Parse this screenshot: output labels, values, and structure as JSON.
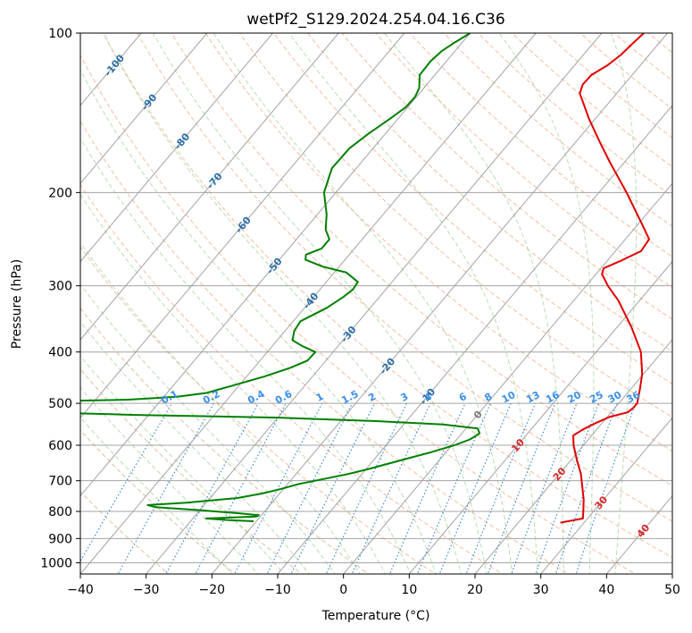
{
  "chart_data": {
    "type": "line",
    "title": "wetPf2_S129.2024.254.04.16.C36",
    "xlabel": "Temperature (°C)",
    "ylabel": "Pressure (hPa)",
    "xlim": [
      -40,
      50
    ],
    "ylim": [
      1050,
      100
    ],
    "y_scale": "log",
    "grid": true,
    "x_ticks": [
      -40,
      -30,
      -20,
      -10,
      0,
      10,
      20,
      30,
      40,
      50
    ],
    "y_ticks": [
      100,
      200,
      300,
      400,
      500,
      600,
      700,
      800,
      900,
      1000
    ],
    "colors": {
      "temperature": "#e00000",
      "dewpoint": "#008000",
      "isotherm": "#9a9a9a",
      "dry_adiabat": "#f4a582",
      "moist_adiabat": "#a6d5a0",
      "mixing_ratio": "#2c7fd6",
      "isotherm_label_cold": "#2b6ea6",
      "isotherm_label_warm": "#d62728",
      "isotherm_label_zero": "#7a7a7a",
      "mixing_label": "#3a8fe8"
    },
    "series": [
      {
        "role": "temperature",
        "points": [
          {
            "p": 840,
            "t": 26.4
          },
          {
            "p": 825,
            "t": 29.3
          },
          {
            "p": 810,
            "t": 28.8
          },
          {
            "p": 790,
            "t": 28.1
          },
          {
            "p": 760,
            "t": 27.0
          },
          {
            "p": 720,
            "t": 25.2
          },
          {
            "p": 680,
            "t": 23.3
          },
          {
            "p": 640,
            "t": 20.9
          },
          {
            "p": 600,
            "t": 18.5
          },
          {
            "p": 575,
            "t": 17.2
          },
          {
            "p": 560,
            "t": 17.9
          },
          {
            "p": 545,
            "t": 19.0
          },
          {
            "p": 530,
            "t": 20.4
          },
          {
            "p": 520,
            "t": 22.5
          },
          {
            "p": 510,
            "t": 22.8
          },
          {
            "p": 500,
            "t": 22.8
          },
          {
            "p": 470,
            "t": 21.4
          },
          {
            "p": 440,
            "t": 19.8
          },
          {
            "p": 400,
            "t": 16.8
          },
          {
            "p": 360,
            "t": 12.3
          },
          {
            "p": 320,
            "t": 6.8
          },
          {
            "p": 300,
            "t": 3.3
          },
          {
            "p": 285,
            "t": 0.9
          },
          {
            "p": 278,
            "t": 0.4
          },
          {
            "p": 270,
            "t": 1.9
          },
          {
            "p": 258,
            "t": 3.9
          },
          {
            "p": 245,
            "t": 3.6
          },
          {
            "p": 230,
            "t": 0.7
          },
          {
            "p": 200,
            "t": -5.8
          },
          {
            "p": 175,
            "t": -12.3
          },
          {
            "p": 160,
            "t": -16.5
          },
          {
            "p": 145,
            "t": -21.0
          },
          {
            "p": 135,
            "t": -24.0
          },
          {
            "p": 130,
            "t": -25.6
          },
          {
            "p": 125,
            "t": -26.3
          },
          {
            "p": 120,
            "t": -26.2
          },
          {
            "p": 115,
            "t": -25.0
          },
          {
            "p": 110,
            "t": -24.3
          },
          {
            "p": 105,
            "t": -24.0
          },
          {
            "p": 100,
            "t": -23.6
          }
        ]
      },
      {
        "role": "dewpoint",
        "points": [
          {
            "p": 835,
            "t": -20.4
          },
          {
            "p": 830,
            "t": -24.9
          },
          {
            "p": 825,
            "t": -28.0
          },
          {
            "p": 818,
            "t": -20.6
          },
          {
            "p": 813,
            "t": -20.4
          },
          {
            "p": 806,
            "t": -23.9
          },
          {
            "p": 795,
            "t": -30.5
          },
          {
            "p": 785,
            "t": -37.2
          },
          {
            "p": 778,
            "t": -38.6
          },
          {
            "p": 770,
            "t": -33.0
          },
          {
            "p": 755,
            "t": -25.9
          },
          {
            "p": 740,
            "t": -22.7
          },
          {
            "p": 725,
            "t": -20.3
          },
          {
            "p": 710,
            "t": -18.3
          },
          {
            "p": 695,
            "t": -15.2
          },
          {
            "p": 680,
            "t": -12.1
          },
          {
            "p": 665,
            "t": -9.6
          },
          {
            "p": 650,
            "t": -7.3
          },
          {
            "p": 635,
            "t": -5.0
          },
          {
            "p": 620,
            "t": -2.5
          },
          {
            "p": 600,
            "t": 0.4
          },
          {
            "p": 585,
            "t": 2.0
          },
          {
            "p": 570,
            "t": 2.7
          },
          {
            "p": 558,
            "t": 1.8
          },
          {
            "p": 548,
            "t": -4.0
          },
          {
            "p": 540,
            "t": -15.0
          },
          {
            "p": 532,
            "t": -30.0
          },
          {
            "p": 526,
            "t": -52.0
          },
          {
            "p": 520,
            "t": -66.0
          },
          {
            "p": 496,
            "t": -68.0
          },
          {
            "p": 492,
            "t": -55.0
          },
          {
            "p": 486,
            "t": -48.0
          },
          {
            "p": 478,
            "t": -44.0
          },
          {
            "p": 462,
            "t": -40.8
          },
          {
            "p": 445,
            "t": -37.3
          },
          {
            "p": 428,
            "t": -34.4
          },
          {
            "p": 415,
            "t": -32.8
          },
          {
            "p": 400,
            "t": -32.7
          },
          {
            "p": 390,
            "t": -35.4
          },
          {
            "p": 380,
            "t": -37.7
          },
          {
            "p": 365,
            "t": -38.6
          },
          {
            "p": 350,
            "t": -38.9
          },
          {
            "p": 330,
            "t": -36.6
          },
          {
            "p": 315,
            "t": -35.5
          },
          {
            "p": 305,
            "t": -35.0
          },
          {
            "p": 295,
            "t": -35.2
          },
          {
            "p": 283,
            "t": -38.2
          },
          {
            "p": 276,
            "t": -42.5
          },
          {
            "p": 268,
            "t": -46.0
          },
          {
            "p": 262,
            "t": -46.6
          },
          {
            "p": 255,
            "t": -45.0
          },
          {
            "p": 245,
            "t": -45.0
          },
          {
            "p": 235,
            "t": -46.8
          },
          {
            "p": 220,
            "t": -48.6
          },
          {
            "p": 200,
            "t": -51.8
          },
          {
            "p": 180,
            "t": -53.7
          },
          {
            "p": 165,
            "t": -53.6
          },
          {
            "p": 155,
            "t": -52.6
          },
          {
            "p": 145,
            "t": -51.2
          },
          {
            "p": 138,
            "t": -50.3
          },
          {
            "p": 132,
            "t": -50.2
          },
          {
            "p": 127,
            "t": -50.7
          },
          {
            "p": 120,
            "t": -52.3
          },
          {
            "p": 113,
            "t": -52.4
          },
          {
            "p": 108,
            "t": -52.0
          },
          {
            "p": 104,
            "t": -51.1
          },
          {
            "p": 100,
            "t": -50.0
          }
        ]
      }
    ],
    "isotherm_labels": [
      "-100",
      "-90",
      "-80",
      "-70",
      "-60",
      "-50",
      "-40",
      "-30",
      "-20",
      "-10",
      "0",
      "10",
      "20",
      "30",
      "40"
    ],
    "mixing_ratio_labels": [
      "0.1",
      "0.2",
      "0.4",
      "0.6",
      "1",
      "1.5",
      "2",
      "3",
      "4",
      "6",
      "8",
      "10",
      "13",
      "16",
      "20",
      "25",
      "30",
      "36"
    ]
  }
}
